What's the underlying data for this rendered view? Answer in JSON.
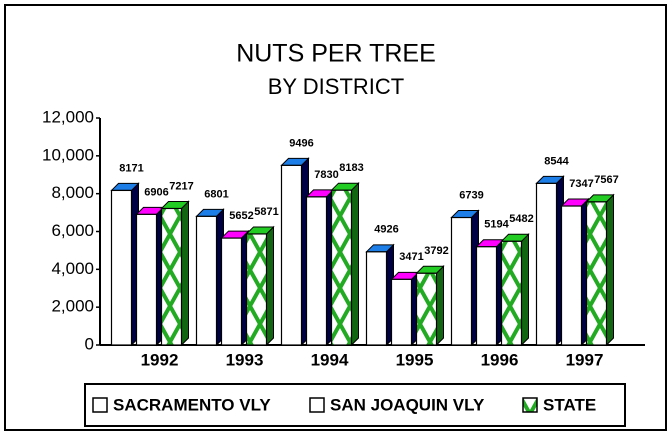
{
  "chart_data": {
    "type": "bar3d",
    "title": "NUTS PER TREE",
    "subtitle": "BY DISTRICT",
    "categories": [
      "1992",
      "1993",
      "1994",
      "1995",
      "1996",
      "1997"
    ],
    "series": [
      {
        "name": "SACRAMENTO VLY",
        "color": "#1e7ee8",
        "values": [
          8171,
          6801,
          9496,
          4926,
          6739,
          8544
        ]
      },
      {
        "name": "SAN JOAQUIN VLY",
        "color": "#ff00ff",
        "values": [
          6906,
          5652,
          7830,
          3471,
          5194,
          7347
        ]
      },
      {
        "name": "STATE",
        "color": "#22cc22",
        "values": [
          7217,
          5871,
          8183,
          3792,
          5482,
          7567
        ]
      }
    ],
    "ylim": [
      0,
      12000
    ],
    "yticks": [
      0,
      {
        "value": 2000,
        "label": "2,000"
      },
      {
        "value": 4000,
        "label": "4,000"
      },
      {
        "value": 6000,
        "label": "6,000"
      },
      {
        "value": 8000,
        "label": "8,000"
      },
      {
        "value": 10000,
        "label": "10,000"
      },
      {
        "value": 12000,
        "label": "12,000"
      }
    ],
    "legend": "bottom"
  }
}
